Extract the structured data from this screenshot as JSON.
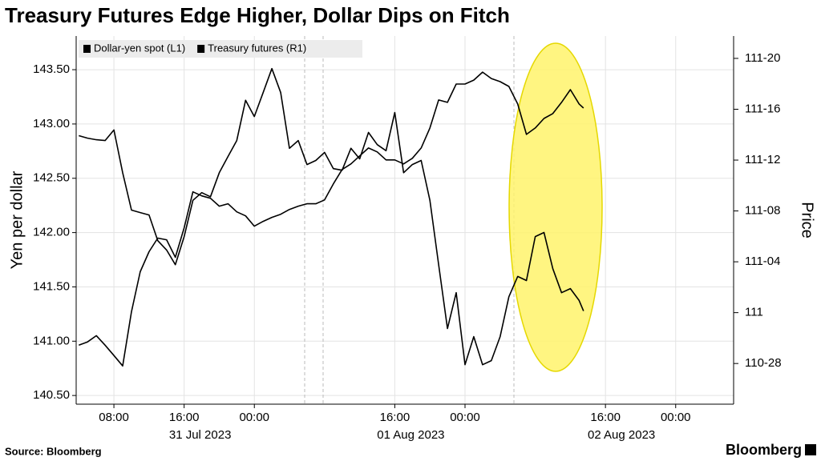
{
  "chart_data": {
    "type": "line",
    "title": "Treasury Futures Edge Higher, Dollar Dips on Fitch",
    "ylabel": "Yen per dollar",
    "y2label": "Price",
    "source": "Source: Bloomberg",
    "brand": "Bloomberg",
    "legend": "upper left",
    "grid": true,
    "x": [
      4,
      5,
      6,
      7,
      8,
      9,
      10,
      11,
      12,
      13,
      14,
      15,
      16,
      17,
      18,
      19,
      20,
      21,
      22,
      23,
      24,
      25,
      26,
      27,
      28,
      29,
      30,
      31,
      32,
      33,
      34,
      35,
      36,
      37,
      38,
      39,
      40,
      41,
      42,
      43,
      44,
      45,
      46,
      47,
      48,
      49,
      50,
      51,
      52,
      53,
      54,
      55,
      56,
      57,
      58,
      59,
      60,
      61,
      61.5
    ],
    "xlim": [
      3.7,
      78.6
    ],
    "xticks": [
      {
        "value": 8,
        "label": "08:00"
      },
      {
        "value": 16,
        "label": "16:00"
      },
      {
        "value": 24,
        "label": "00:00"
      },
      {
        "value": 40,
        "label": "16:00"
      },
      {
        "value": 48,
        "label": "00:00"
      },
      {
        "value": 64,
        "label": "16:00"
      },
      {
        "value": 72,
        "label": "00:00"
      }
    ],
    "date_labels": [
      {
        "value": 16,
        "label": "31 Jul 2023"
      },
      {
        "value": 40,
        "label": "01 Aug 2023"
      },
      {
        "value": 64,
        "label": "02 Aug 2023"
      }
    ],
    "ylim": [
      140.42,
      143.81
    ],
    "yticks": [
      {
        "value": 140.5,
        "label": "140.50"
      },
      {
        "value": 141,
        "label": "141.00"
      },
      {
        "value": 141.5,
        "label": "141.50"
      },
      {
        "value": 142,
        "label": "142.00"
      },
      {
        "value": 142.5,
        "label": "142.50"
      },
      {
        "value": 143,
        "label": "143.00"
      },
      {
        "value": 143.5,
        "label": "143.50"
      }
    ],
    "y2lim": [
      110.775,
      111.68
    ],
    "y2ticks": [
      {
        "value": 110.875,
        "label": "110-28"
      },
      {
        "value": 111,
        "label": "111"
      },
      {
        "value": 111.125,
        "label": "111-04"
      },
      {
        "value": 111.25,
        "label": "111-08"
      },
      {
        "value": 111.375,
        "label": "111-12"
      },
      {
        "value": 111.5,
        "label": "111-16"
      },
      {
        "value": 111.625,
        "label": "111-20"
      }
    ],
    "series": [
      {
        "name": "Dollar-yen spot (L1)",
        "color": "#000000",
        "values": [
          140.963,
          140.993,
          141.051,
          140.963,
          140.868,
          140.772,
          141.272,
          141.64,
          141.824,
          141.949,
          141.934,
          141.772,
          142.044,
          142.375,
          142.338,
          142.316,
          142.243,
          142.265,
          142.191,
          142.154,
          142.059,
          142.103,
          142.14,
          142.169,
          142.213,
          142.243,
          142.265,
          142.265,
          142.301,
          142.449,
          142.581,
          142.632,
          142.706,
          142.779,
          142.743,
          142.669,
          142.669,
          142.632,
          142.684,
          142.779,
          142.963,
          143.221,
          143.199,
          143.368,
          143.368,
          143.404,
          143.478,
          143.419,
          143.39,
          143.346,
          143.184,
          142.904,
          142.963,
          143.051,
          143.096,
          143.199,
          143.316,
          143.184,
          143.147
        ]
      },
      {
        "name": "Treasury futures (R1)",
        "color": "#000000",
        "axis": "y2",
        "values": [
          111.435,
          111.429,
          111.425,
          111.423,
          111.449,
          111.344,
          111.252,
          111.246,
          111.24,
          111.177,
          111.154,
          111.118,
          111.187,
          111.276,
          111.295,
          111.285,
          111.344,
          111.384,
          111.423,
          111.522,
          111.482,
          111.541,
          111.6,
          111.541,
          111.404,
          111.423,
          111.364,
          111.374,
          111.394,
          111.354,
          111.35,
          111.404,
          111.378,
          111.443,
          111.413,
          111.398,
          111.492,
          111.344,
          111.364,
          111.374,
          111.276,
          111.118,
          110.961,
          111.049,
          110.872,
          110.941,
          110.872,
          110.882,
          110.941,
          111.039,
          111.089,
          111.079,
          111.187,
          111.197,
          111.108,
          111.049,
          111.059,
          111.03,
          111.004
        ]
      }
    ]
  }
}
